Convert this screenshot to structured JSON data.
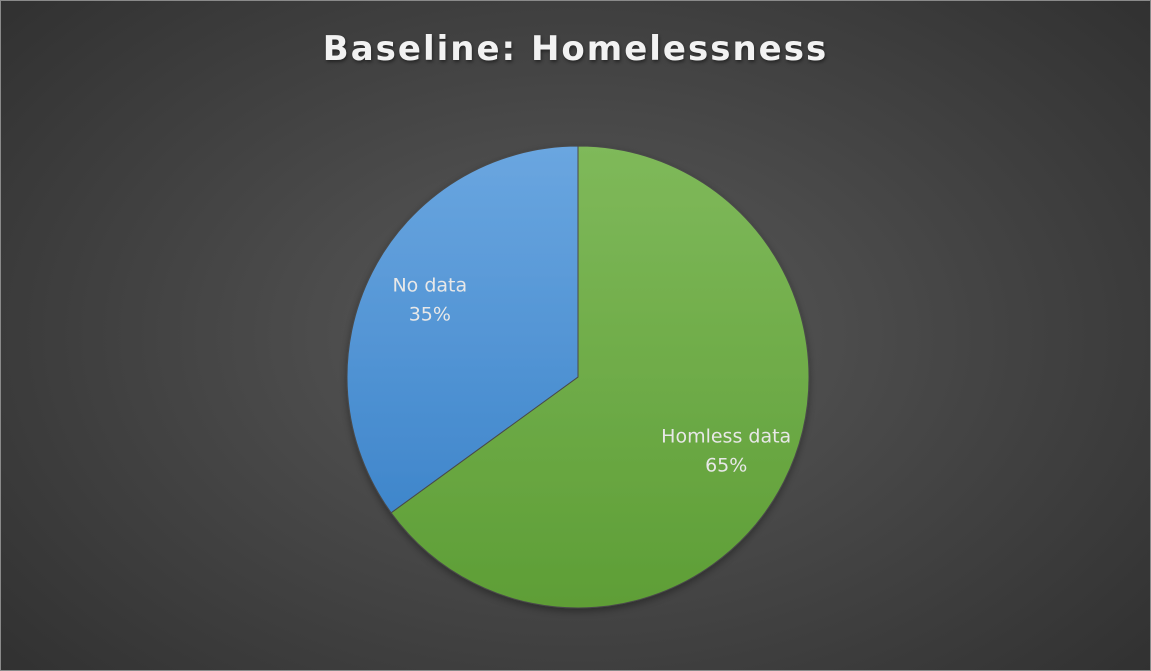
{
  "chart_data": {
    "type": "pie",
    "title": "Baseline: Homelessness",
    "start_angle_deg": 0,
    "direction": "clockwise",
    "slices": [
      {
        "name": "Homless data",
        "value": 65,
        "label": "65%",
        "color": "#6aaa3f",
        "color_light": "#7fb95a",
        "color_dark": "#5e9e36"
      },
      {
        "name": "No data",
        "value": 35,
        "label": "35%",
        "color": "#4f93d6",
        "color_light": "#6aa6e0",
        "color_dark": "#3f86cb"
      }
    ],
    "legend": "none",
    "background": "#3f3f3f"
  }
}
